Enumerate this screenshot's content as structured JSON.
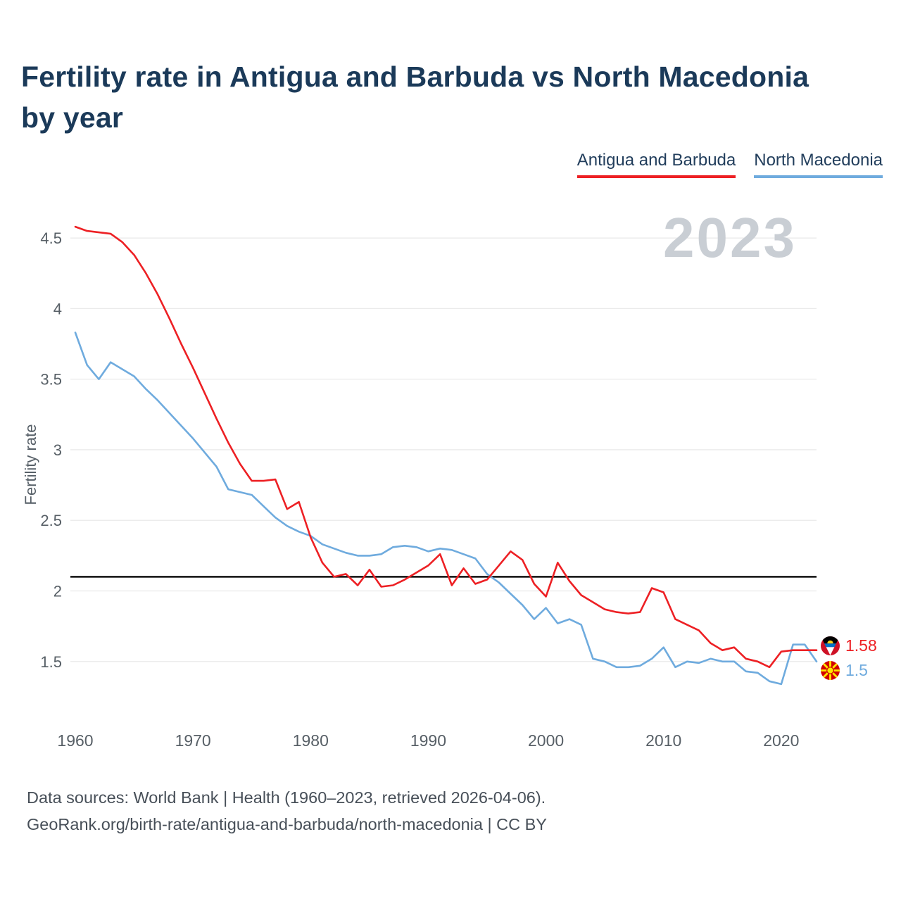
{
  "page": {
    "title_line1": "Fertility rate in Antigua and Barbuda vs North Macedonia",
    "title_line2": "by year",
    "watermark_year": "2023",
    "footer_line1": "Data sources: World Bank | Health (1960–2023, retrieved 2026-04-06).",
    "footer_line2": "GeoRank.org/birth-rate/antigua-and-barbuda/north-macedonia | CC BY"
  },
  "legend": {
    "items": [
      {
        "label": "Antigua and Barbuda",
        "color": "#ed2024"
      },
      {
        "label": "North Macedonia",
        "color": "#6fabde"
      }
    ]
  },
  "end_labels": {
    "antigua": {
      "value": "1.58",
      "color": "#ed2024"
    },
    "north_macedonia": {
      "value": "1.5",
      "color": "#6fabde"
    }
  },
  "chart_data": {
    "type": "line",
    "title": "Fertility rate in Antigua and Barbuda vs North Macedonia by year",
    "xlabel": "",
    "ylabel": "Fertility rate",
    "grid": "horizontal",
    "legend_position": "top-right",
    "xlim": [
      1959.58,
      2023
    ],
    "ylim": [
      1.08,
      4.69
    ],
    "xticks": [
      1960,
      1970,
      1980,
      1990,
      2000,
      2010,
      2020
    ],
    "yticks": [
      1.5,
      2,
      2.5,
      3,
      3.5,
      4,
      4.5
    ],
    "ytick_labels": [
      "1.5",
      "2",
      "2.5",
      "3",
      "3.5",
      "4",
      "4.5"
    ],
    "reference_line": {
      "value": 2.1,
      "color": "#000000"
    },
    "x": [
      1960,
      1961,
      1962,
      1963,
      1964,
      1965,
      1966,
      1967,
      1968,
      1969,
      1970,
      1971,
      1972,
      1973,
      1974,
      1975,
      1976,
      1977,
      1978,
      1979,
      1980,
      1981,
      1982,
      1983,
      1984,
      1985,
      1986,
      1987,
      1988,
      1989,
      1990,
      1991,
      1992,
      1993,
      1994,
      1995,
      1996,
      1997,
      1998,
      1999,
      2000,
      2001,
      2002,
      2003,
      2004,
      2005,
      2006,
      2007,
      2008,
      2009,
      2010,
      2011,
      2012,
      2013,
      2014,
      2015,
      2016,
      2017,
      2018,
      2019,
      2020,
      2021,
      2022,
      2023
    ],
    "series": [
      {
        "name": "Antigua and Barbuda",
        "color": "#ed2024",
        "values": [
          4.58,
          4.55,
          4.54,
          4.53,
          4.47,
          4.38,
          4.25,
          4.1,
          3.93,
          3.75,
          3.58,
          3.4,
          3.22,
          3.05,
          2.9,
          2.78,
          2.78,
          2.79,
          2.58,
          2.63,
          2.38,
          2.2,
          2.1,
          2.12,
          2.04,
          2.15,
          2.03,
          2.04,
          2.08,
          2.13,
          2.18,
          2.26,
          2.04,
          2.16,
          2.05,
          2.08,
          2.18,
          2.28,
          2.22,
          2.05,
          1.96,
          2.2,
          2.07,
          1.97,
          1.92,
          1.87,
          1.85,
          1.84,
          1.85,
          2.02,
          1.99,
          1.8,
          1.76,
          1.72,
          1.63,
          1.58,
          1.6,
          1.52,
          1.5,
          1.46,
          1.57,
          1.58,
          1.58,
          1.58
        ]
      },
      {
        "name": "North Macedonia",
        "color": "#6fabde",
        "values": [
          3.83,
          3.6,
          3.5,
          3.62,
          3.57,
          3.52,
          3.43,
          3.35,
          3.26,
          3.17,
          3.08,
          2.98,
          2.88,
          2.72,
          2.7,
          2.68,
          2.6,
          2.52,
          2.46,
          2.42,
          2.39,
          2.33,
          2.3,
          2.27,
          2.25,
          2.25,
          2.26,
          2.31,
          2.32,
          2.31,
          2.28,
          2.3,
          2.29,
          2.26,
          2.23,
          2.12,
          2.06,
          1.98,
          1.9,
          1.8,
          1.88,
          1.77,
          1.8,
          1.76,
          1.52,
          1.5,
          1.46,
          1.46,
          1.47,
          1.52,
          1.6,
          1.46,
          1.5,
          1.49,
          1.52,
          1.5,
          1.5,
          1.43,
          1.42,
          1.36,
          1.34,
          1.62,
          1.62,
          1.5
        ]
      }
    ]
  }
}
